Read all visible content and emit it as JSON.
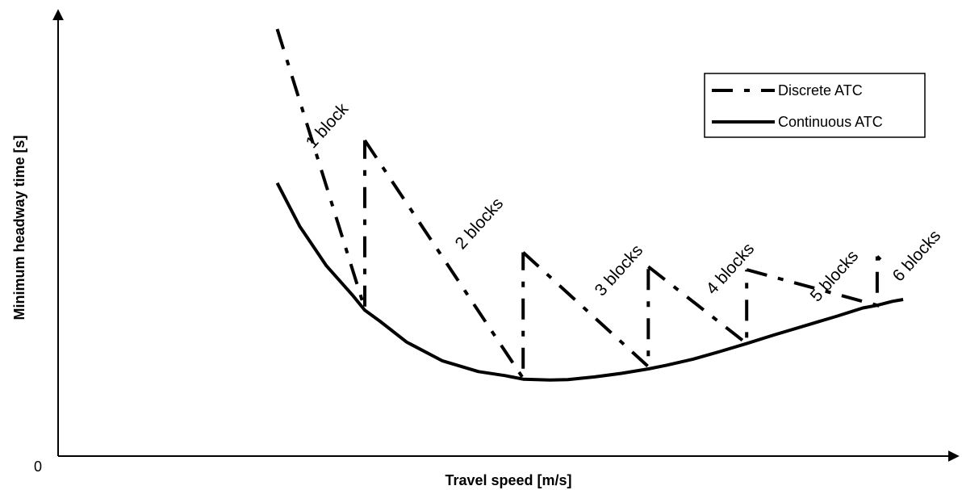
{
  "chart_data": {
    "type": "line",
    "title": "",
    "xlabel": "Travel speed [m/s]",
    "ylabel": "Minimum headway time [s]",
    "origin_label": "0",
    "xlim": [
      0,
      100
    ],
    "ylim": [
      0,
      100
    ],
    "grid": false,
    "legend_position": "top-right",
    "colors": {
      "line": "#000000"
    },
    "legend": [
      {
        "label": "Discrete ATC",
        "style": "dashed"
      },
      {
        "label": "Continuous ATC",
        "style": "solid"
      }
    ],
    "series": [
      {
        "name": "Continuous ATC",
        "style": "solid",
        "x": [
          24.5,
          27,
          30,
          33,
          34.3,
          36,
          39,
          43,
          47,
          50,
          52,
          55,
          57,
          60,
          63,
          66,
          68,
          71,
          74,
          77,
          80,
          84,
          87,
          90,
          91.6,
          93.3,
          94.5
        ],
        "y": [
          61.4,
          51.7,
          42.8,
          36.0,
          32.8,
          30.3,
          25.6,
          21.4,
          19.0,
          18.1,
          17.3,
          17.1,
          17.2,
          17.8,
          18.6,
          19.6,
          20.4,
          21.8,
          23.5,
          25.3,
          27.2,
          29.6,
          31.4,
          33.3,
          33.9,
          34.8,
          35.2
        ]
      },
      {
        "name": "Discrete ATC",
        "style": "dashed",
        "segments": [
          {
            "label": "1 block",
            "x": [
              24.5,
              34.3,
              34.3
            ],
            "y": [
              96.0,
              33.1,
              71.0
            ]
          },
          {
            "label": "2 blocks",
            "x": [
              34.3,
              52.0,
              52.0
            ],
            "y": [
              71.0,
              17.5,
              45.8
            ]
          },
          {
            "label": "3 blocks",
            "x": [
              52.0,
              66.0,
              66.0
            ],
            "y": [
              45.8,
              20.1,
              42.6
            ]
          },
          {
            "label": "4 blocks",
            "x": [
              66.0,
              77.0,
              77.0
            ],
            "y": [
              42.6,
              25.3,
              41.9
            ]
          },
          {
            "label": "5 blocks",
            "x": [
              77.0,
              91.6,
              91.6
            ],
            "y": [
              41.9,
              33.9,
              44.9
            ]
          },
          {
            "label": "6 blocks",
            "x": [
              91.6
            ],
            "y": [
              44.9
            ]
          }
        ]
      }
    ],
    "annotations": [
      "1 block",
      "2 blocks",
      "3 blocks",
      "4 blocks",
      "5 blocks",
      "6 blocks"
    ]
  }
}
